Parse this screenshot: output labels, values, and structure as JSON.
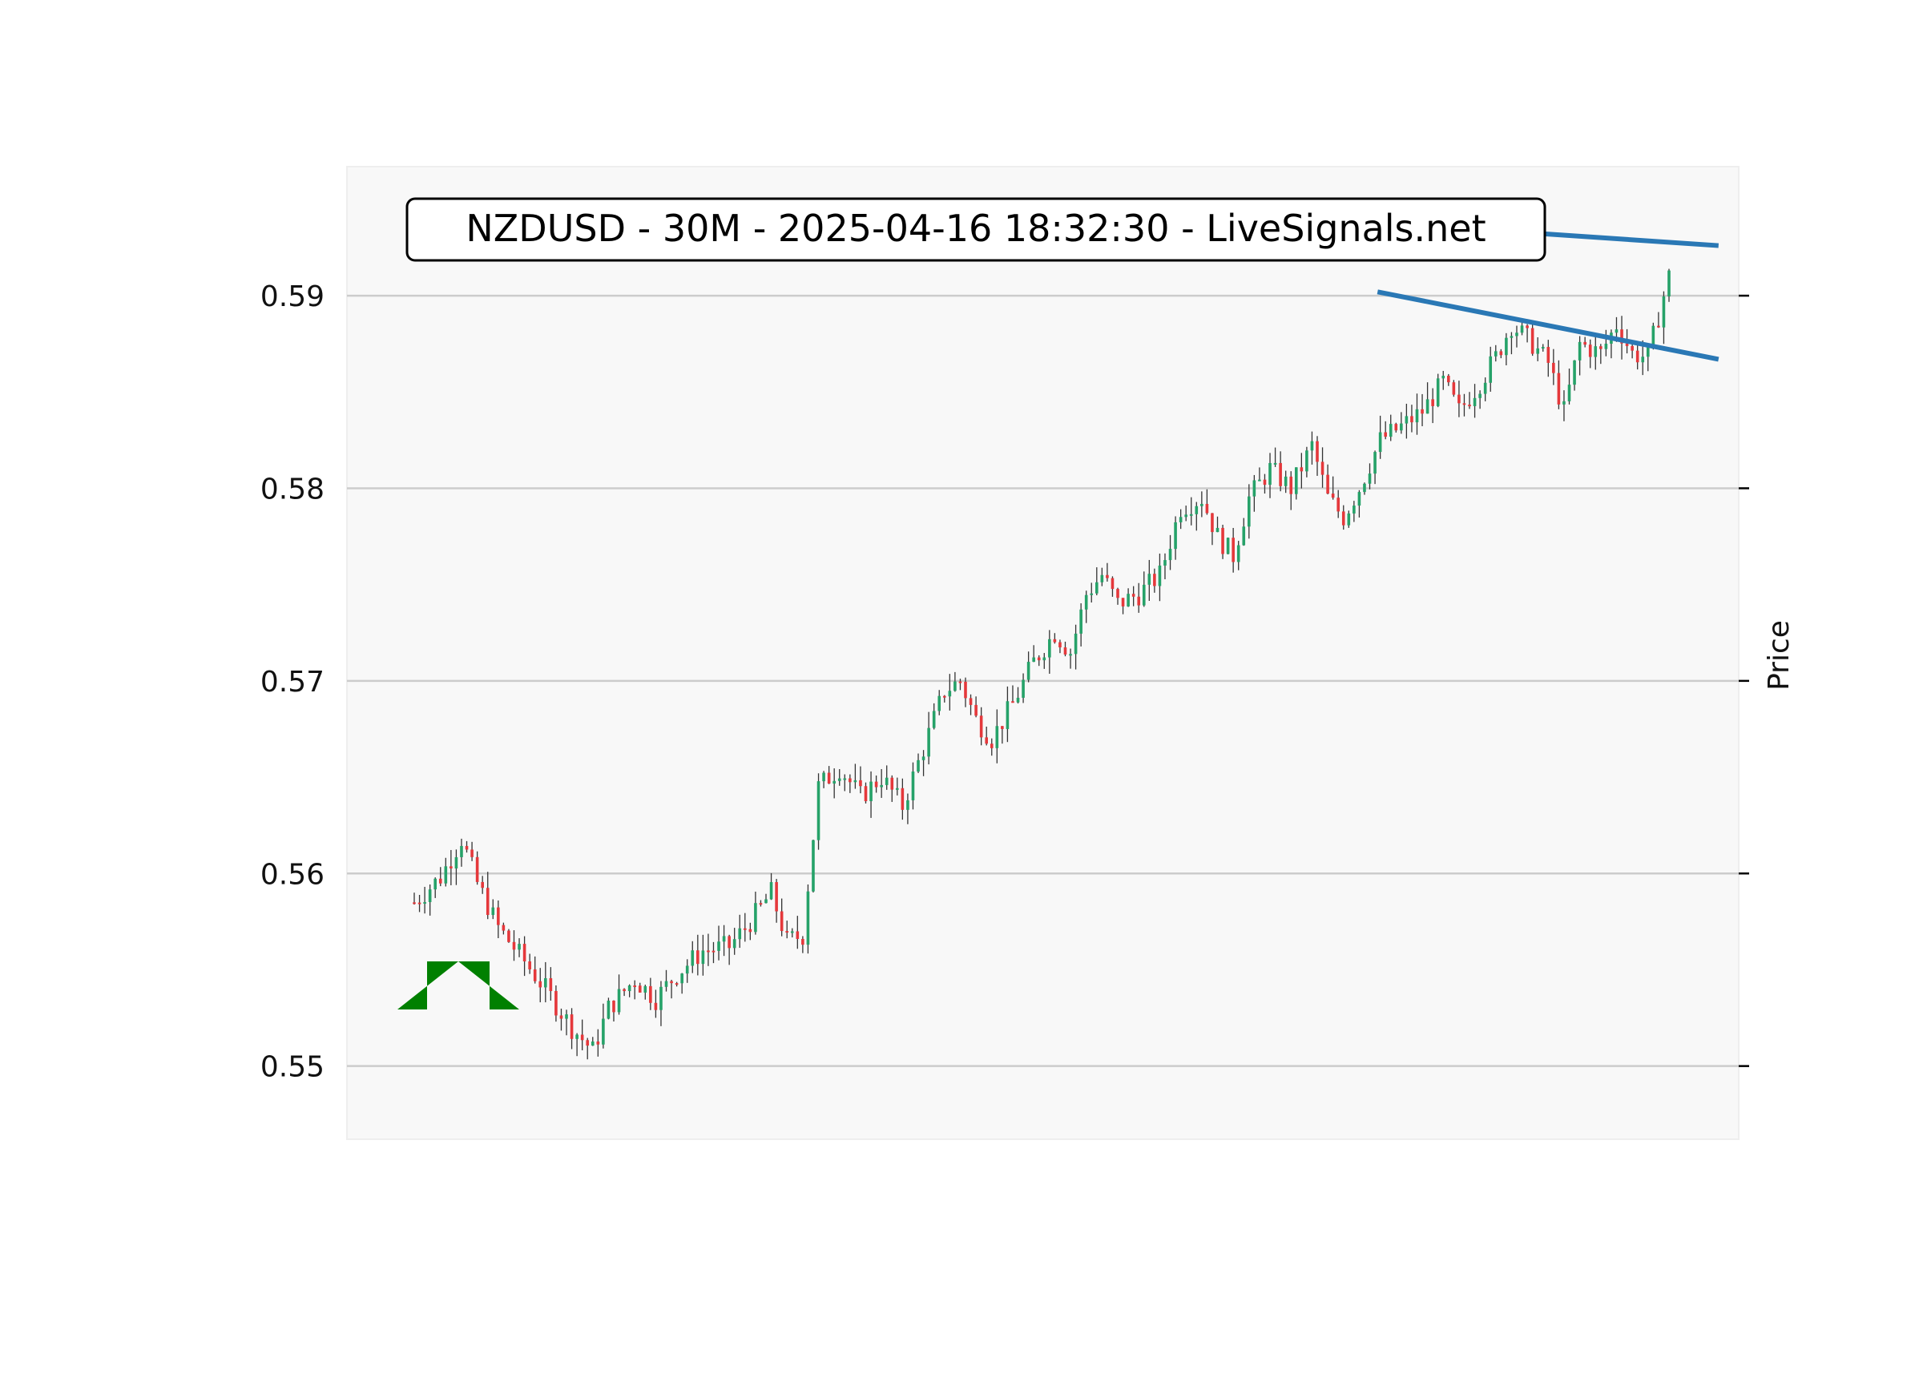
{
  "colors": {
    "up": "#26a269",
    "down": "#e5383b",
    "wick": "#333333",
    "plot_bg": "#f8f8f8",
    "grid": "#cccccc",
    "trendline": "#2a78b5",
    "arrow": "#008000"
  },
  "chart_data": {
    "type": "candlestick",
    "title": "NZDUSD - 30M - 2025-04-16 18:32:30 - LiveSignals.net",
    "ylabel": "Price",
    "xlabel": "",
    "ylim": [
      0.5462,
      0.5967
    ],
    "yticks": [
      0.55,
      0.56,
      0.57,
      0.58,
      0.59
    ],
    "ytick_labels": [
      "0.55",
      "0.56",
      "0.57",
      "0.58",
      "0.59"
    ],
    "grid": "horizontal",
    "candle_count": 240,
    "close_series_anchors": [
      [
        0,
        0.5585
      ],
      [
        5,
        0.5598
      ],
      [
        9,
        0.5618
      ],
      [
        12,
        0.5595
      ],
      [
        16,
        0.5572
      ],
      [
        20,
        0.5558
      ],
      [
        25,
        0.554
      ],
      [
        30,
        0.552
      ],
      [
        34,
        0.5508
      ],
      [
        37,
        0.553
      ],
      [
        42,
        0.5545
      ],
      [
        46,
        0.5535
      ],
      [
        50,
        0.5548
      ],
      [
        55,
        0.556
      ],
      [
        60,
        0.5562
      ],
      [
        64,
        0.5575
      ],
      [
        68,
        0.559
      ],
      [
        71,
        0.5565
      ],
      [
        74,
        0.5568
      ],
      [
        77,
        0.5645
      ],
      [
        81,
        0.5655
      ],
      [
        85,
        0.564
      ],
      [
        89,
        0.565
      ],
      [
        93,
        0.5635
      ],
      [
        97,
        0.5665
      ],
      [
        101,
        0.5695
      ],
      [
        104,
        0.57
      ],
      [
        107,
        0.568
      ],
      [
        110,
        0.567
      ],
      [
        114,
        0.5688
      ],
      [
        118,
        0.571
      ],
      [
        122,
        0.5725
      ],
      [
        125,
        0.5715
      ],
      [
        128,
        0.5745
      ],
      [
        131,
        0.5755
      ],
      [
        134,
        0.574
      ],
      [
        138,
        0.5745
      ],
      [
        142,
        0.5755
      ],
      [
        146,
        0.579
      ],
      [
        150,
        0.5795
      ],
      [
        153,
        0.5775
      ],
      [
        156,
        0.5765
      ],
      [
        159,
        0.5795
      ],
      [
        163,
        0.581
      ],
      [
        167,
        0.58
      ],
      [
        171,
        0.5822
      ],
      [
        174,
        0.5795
      ],
      [
        177,
        0.5785
      ],
      [
        180,
        0.58
      ],
      [
        184,
        0.5825
      ],
      [
        188,
        0.5832
      ],
      [
        192,
        0.584
      ],
      [
        196,
        0.5855
      ],
      [
        199,
        0.584
      ],
      [
        203,
        0.5855
      ],
      [
        206,
        0.5868
      ],
      [
        209,
        0.5885
      ],
      [
        213,
        0.5875
      ],
      [
        216,
        0.5865
      ],
      [
        219,
        0.584
      ],
      [
        222,
        0.5875
      ],
      [
        226,
        0.587
      ],
      [
        229,
        0.5885
      ],
      [
        232,
        0.587
      ],
      [
        235,
        0.5868
      ],
      [
        238,
        0.59
      ],
      [
        240,
        0.592
      ]
    ],
    "range_note": "",
    "trendlines": [
      {
        "from": [
          0.5946,
          0.5945
        ],
        "to": [
          0.9855,
          0.5926
        ]
      },
      {
        "from": [
          0.7405,
          0.5902
        ],
        "to": [
          0.9855,
          0.5867
        ]
      }
    ],
    "signal": "up-arrow"
  }
}
